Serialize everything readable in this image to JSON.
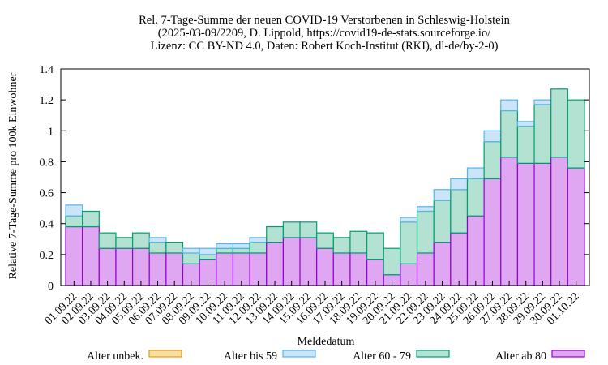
{
  "chart_data": {
    "type": "bar",
    "stacked": true,
    "title_lines": [
      "Rel. 7-Tage-Summe der neuen COVID-19 Verstorbenen in Schleswig-Holstein",
      "(2025-03-09/2209, D. Lippold, https://covid19-de-stats.sourceforge.io/",
      "Lizenz: CC BY-ND 4.0, Daten: Robert Koch-Institut (RKI), dl-de/by-2-0)"
    ],
    "xlabel": "Meldedatum",
    "ylabel": "Relative 7-Tage-Summe pro 100k Einwohner",
    "ylim": [
      0,
      1.4
    ],
    "yticks": [
      0,
      0.2,
      0.4,
      0.6,
      0.8,
      1,
      1.2,
      1.4
    ],
    "ytick_labels": [
      "0",
      "0.2",
      "0.4",
      "0.6",
      "0.8",
      "1",
      "1.2",
      "1.4"
    ],
    "categories": [
      "01.09.22",
      "02.09.22",
      "03.09.22",
      "04.09.22",
      "05.09.22",
      "06.09.22",
      "07.09.22",
      "08.09.22",
      "09.09.22",
      "10.09.22",
      "11.09.22",
      "12.09.22",
      "13.09.22",
      "14.09.22",
      "15.09.22",
      "16.09.22",
      "17.09.22",
      "18.09.22",
      "19.09.22",
      "20.09.22",
      "21.09.22",
      "22.09.22",
      "23.09.22",
      "24.09.22",
      "25.09.22",
      "26.09.22",
      "27.09.22",
      "28.09.22",
      "29.09.22",
      "30.09.22",
      "01.10.22"
    ],
    "series": [
      {
        "name": "Alter ab 80",
        "fill": "#dfa7f1",
        "stroke": "#9400d3",
        "values": [
          0.38,
          0.38,
          0.24,
          0.24,
          0.24,
          0.21,
          0.21,
          0.14,
          0.17,
          0.21,
          0.21,
          0.21,
          0.28,
          0.31,
          0.31,
          0.24,
          0.21,
          0.21,
          0.17,
          0.07,
          0.14,
          0.21,
          0.28,
          0.34,
          0.45,
          0.69,
          0.83,
          0.79,
          0.79,
          0.83,
          0.76
        ]
      },
      {
        "name": "Alter 60 - 79",
        "fill": "#b3e2d2",
        "stroke": "#009e73",
        "values": [
          0.07,
          0.1,
          0.1,
          0.07,
          0.1,
          0.07,
          0.07,
          0.07,
          0.03,
          0.03,
          0.03,
          0.07,
          0.1,
          0.1,
          0.1,
          0.1,
          0.1,
          0.14,
          0.17,
          0.17,
          0.27,
          0.27,
          0.27,
          0.28,
          0.24,
          0.24,
          0.3,
          0.24,
          0.38,
          0.44,
          0.44
        ]
      },
      {
        "name": "Alter bis 59",
        "fill": "#c9e5f7",
        "stroke": "#56b4e9",
        "values": [
          0.07,
          0,
          0,
          0,
          0,
          0.03,
          0,
          0.03,
          0.04,
          0.03,
          0.03,
          0.03,
          0,
          0,
          0,
          0,
          0,
          0,
          0,
          0,
          0.03,
          0.03,
          0.07,
          0.07,
          0.07,
          0.07,
          0.07,
          0.03,
          0.03,
          0,
          0
        ]
      },
      {
        "name": "Alter unbek.",
        "fill": "#f7dea6",
        "stroke": "#e69f00",
        "values": [
          0,
          0,
          0,
          0,
          0,
          0,
          0,
          0,
          0,
          0,
          0,
          0,
          0,
          0,
          0,
          0,
          0,
          0,
          0,
          0,
          0,
          0,
          0,
          0,
          0,
          0,
          0,
          0,
          0,
          0,
          0
        ]
      }
    ],
    "legend": {
      "placement": "bottom",
      "order": [
        "Alter unbek.",
        "Alter bis 59",
        "Alter 60 - 79",
        "Alter ab 80"
      ]
    },
    "grid": false
  }
}
